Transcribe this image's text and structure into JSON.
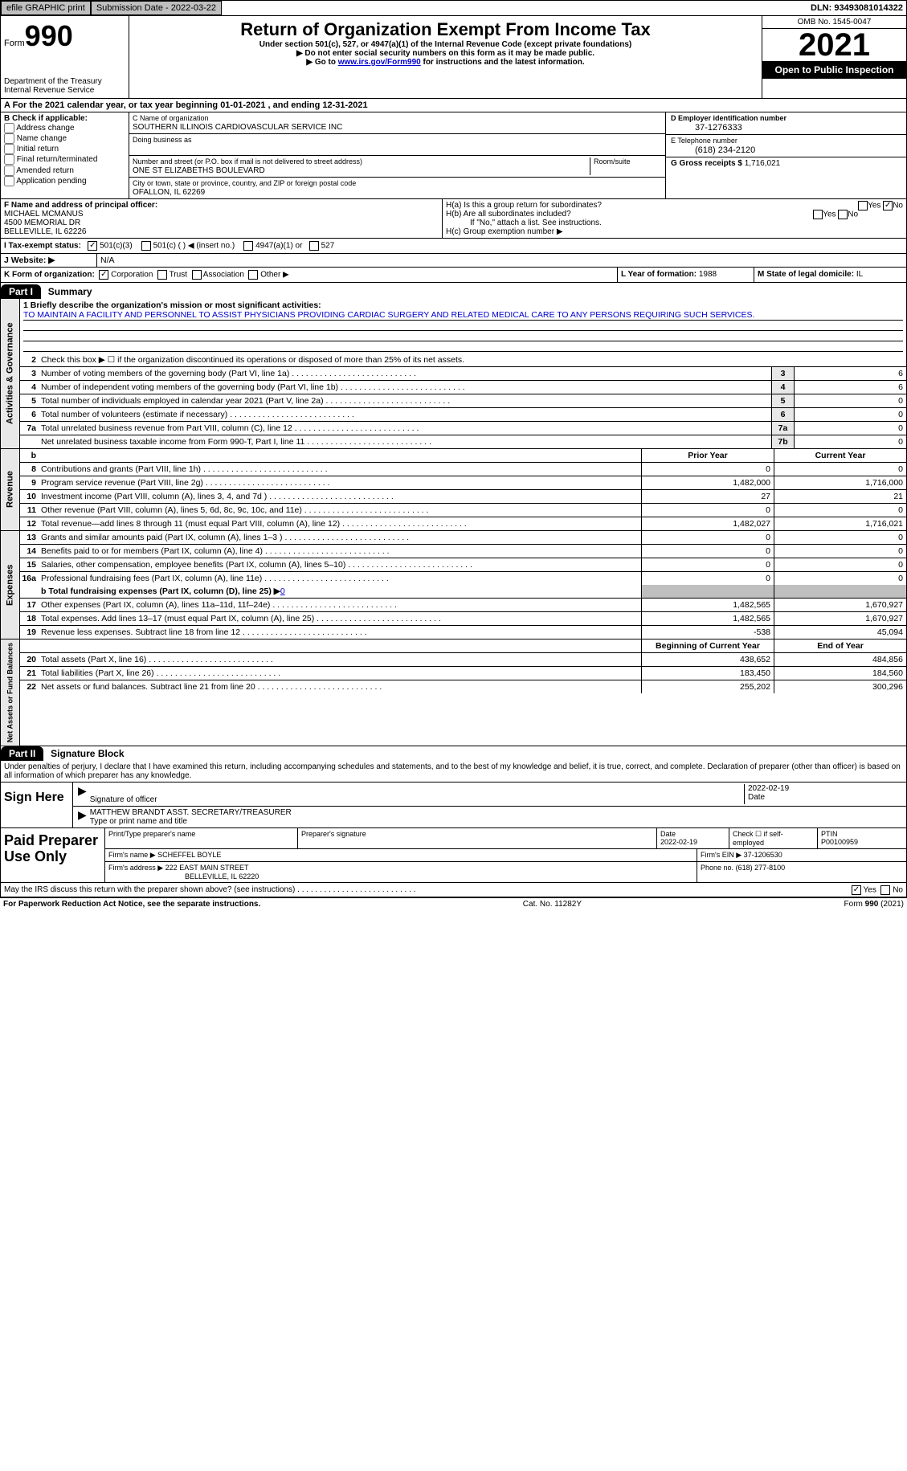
{
  "topbar": {
    "efile": "efile GRAPHIC print",
    "submission_label": "Submission Date - 2022-03-22",
    "dln_label": "DLN: 93493081014322"
  },
  "header": {
    "form_label": "Form",
    "form_no": "990",
    "dept": "Department of the Treasury Internal Revenue Service",
    "title": "Return of Organization Exempt From Income Tax",
    "subtitle": "Under section 501(c), 527, or 4947(a)(1) of the Internal Revenue Code (except private foundations)",
    "note1": "▶ Do not enter social security numbers on this form as it may be made public.",
    "note2_pre": "▶ Go to ",
    "note2_link": "www.irs.gov/Form990",
    "note2_post": " for instructions and the latest information.",
    "omb": "OMB No. 1545-0047",
    "year": "2021",
    "inspect": "Open to Public Inspection"
  },
  "line_a": "A For the 2021 calendar year, or tax year beginning 01-01-2021   , and ending 12-31-2021",
  "section_b": {
    "title": "B Check if applicable:",
    "items": [
      "Address change",
      "Name change",
      "Initial return",
      "Final return/terminated",
      "Amended return",
      "Application pending"
    ]
  },
  "section_c": {
    "name_label": "C Name of organization",
    "name": "SOUTHERN ILLINOIS CARDIOVASCULAR SERVICE INC",
    "dba_label": "Doing business as",
    "dba": "",
    "addr_label": "Number and street (or P.O. box if mail is not delivered to street address)",
    "room_label": "Room/suite",
    "addr": "ONE ST ELIZABETHS BOULEVARD",
    "city_label": "City or town, state or province, country, and ZIP or foreign postal code",
    "city": "OFALLON, IL  62269"
  },
  "section_d": {
    "label": "D Employer identification number",
    "ein": "37-1276333"
  },
  "section_e": {
    "label": "E Telephone number",
    "phone": "(618) 234-2120"
  },
  "section_g": {
    "label": "G Gross receipts $",
    "val": "1,716,021"
  },
  "section_f": {
    "label": "F Name and address of principal officer:",
    "name": "MICHAEL MCMANUS",
    "addr1": "4500 MEMORIAL DR",
    "addr2": "BELLEVILLE, IL 62226"
  },
  "section_h": {
    "ha": "H(a)  Is this a group return for subordinates?",
    "hb": "H(b)  Are all subordinates included?",
    "hb_note": "If \"No,\" attach a list. See instructions.",
    "hc": "H(c)  Group exemption number ▶",
    "yes": "Yes",
    "no": "No"
  },
  "tax_status": {
    "label": "I  Tax-exempt status:",
    "c3": "501(c)(3)",
    "c": "501(c) (  ) ◀ (insert no.)",
    "a1": "4947(a)(1) or",
    "527": "527"
  },
  "website": {
    "label": "J  Website: ▶",
    "val": "N/A"
  },
  "k": {
    "label": "K Form of organization:",
    "corp": "Corporation",
    "trust": "Trust",
    "assoc": "Association",
    "other": "Other ▶"
  },
  "l": {
    "label": "L Year of formation:",
    "val": "1988"
  },
  "m": {
    "label": "M State of legal domicile:",
    "val": "IL"
  },
  "part1": {
    "header": "Part I",
    "title": "Summary",
    "vert1": "Activities & Governance",
    "vert2": "Revenue",
    "vert3": "Expenses",
    "vert4": "Net Assets or Fund Balances",
    "mission_label": "1   Briefly describe the organization's mission or most significant activities:",
    "mission": "TO MAINTAIN A FACILITY AND PERSONNEL TO ASSIST PHYSICIANS PROVIDING CARDIAC SURGERY AND RELATED MEDICAL CARE TO ANY PERSONS REQUIRING SUCH SERVICES.",
    "l2": "Check this box ▶ ☐ if the organization discontinued its operations or disposed of more than 25% of its net assets.",
    "prior_h": "Prior Year",
    "curr_h": "Current Year",
    "beg_h": "Beginning of Current Year",
    "end_h": "End of Year",
    "lines_gov": [
      {
        "n": "3",
        "t": "Number of voting members of the governing body (Part VI, line 1a)",
        "box": "3",
        "v": "6"
      },
      {
        "n": "4",
        "t": "Number of independent voting members of the governing body (Part VI, line 1b)",
        "box": "4",
        "v": "6"
      },
      {
        "n": "5",
        "t": "Total number of individuals employed in calendar year 2021 (Part V, line 2a)",
        "box": "5",
        "v": "0"
      },
      {
        "n": "6",
        "t": "Total number of volunteers (estimate if necessary)",
        "box": "6",
        "v": "0"
      },
      {
        "n": "7a",
        "t": "Total unrelated business revenue from Part VIII, column (C), line 12",
        "box": "7a",
        "v": "0"
      },
      {
        "n": "",
        "t": "Net unrelated business taxable income from Form 990-T, Part I, line 11",
        "box": "7b",
        "v": "0"
      }
    ],
    "lines_rev": [
      {
        "n": "8",
        "t": "Contributions and grants (Part VIII, line 1h)",
        "p": "0",
        "c": "0"
      },
      {
        "n": "9",
        "t": "Program service revenue (Part VIII, line 2g)",
        "p": "1,482,000",
        "c": "1,716,000"
      },
      {
        "n": "10",
        "t": "Investment income (Part VIII, column (A), lines 3, 4, and 7d )",
        "p": "27",
        "c": "21"
      },
      {
        "n": "11",
        "t": "Other revenue (Part VIII, column (A), lines 5, 6d, 8c, 9c, 10c, and 11e)",
        "p": "0",
        "c": "0"
      },
      {
        "n": "12",
        "t": "Total revenue—add lines 8 through 11 (must equal Part VIII, column (A), line 12)",
        "p": "1,482,027",
        "c": "1,716,021"
      }
    ],
    "lines_exp": [
      {
        "n": "13",
        "t": "Grants and similar amounts paid (Part IX, column (A), lines 1–3 )",
        "p": "0",
        "c": "0"
      },
      {
        "n": "14",
        "t": "Benefits paid to or for members (Part IX, column (A), line 4)",
        "p": "0",
        "c": "0"
      },
      {
        "n": "15",
        "t": "Salaries, other compensation, employee benefits (Part IX, column (A), lines 5–10)",
        "p": "0",
        "c": "0"
      },
      {
        "n": "16a",
        "t": "Professional fundraising fees (Part IX, column (A), line 11e)",
        "p": "0",
        "c": "0"
      }
    ],
    "l16b_label": "b  Total fundraising expenses (Part IX, column (D), line 25) ▶",
    "l16b_val": "0",
    "lines_exp2": [
      {
        "n": "17",
        "t": "Other expenses (Part IX, column (A), lines 11a–11d, 11f–24e)",
        "p": "1,482,565",
        "c": "1,670,927"
      },
      {
        "n": "18",
        "t": "Total expenses. Add lines 13–17 (must equal Part IX, column (A), line 25)",
        "p": "1,482,565",
        "c": "1,670,927"
      },
      {
        "n": "19",
        "t": "Revenue less expenses. Subtract line 18 from line 12",
        "p": "-538",
        "c": "45,094"
      }
    ],
    "lines_net": [
      {
        "n": "20",
        "t": "Total assets (Part X, line 16)",
        "p": "438,652",
        "c": "484,856"
      },
      {
        "n": "21",
        "t": "Total liabilities (Part X, line 26)",
        "p": "183,450",
        "c": "184,560"
      },
      {
        "n": "22",
        "t": "Net assets or fund balances. Subtract line 21 from line 20",
        "p": "255,202",
        "c": "300,296"
      }
    ]
  },
  "part2": {
    "header": "Part II",
    "title": "Signature Block",
    "decl": "Under penalties of perjury, I declare that I have examined this return, including accompanying schedules and statements, and to the best of my knowledge and belief, it is true, correct, and complete. Declaration of preparer (other than officer) is based on all information of which preparer has any knowledge.",
    "sign_here": "Sign Here",
    "sig_officer": "Signature of officer",
    "sig_date": "2022-02-19",
    "date_label": "Date",
    "signer_name": "MATTHEW BRANDT  ASST. SECRETARY/TREASURER",
    "signer_title_label": "Type or print name and title",
    "paid": "Paid Preparer Use Only",
    "prep_name_label": "Print/Type preparer's name",
    "prep_sig_label": "Preparer's signature",
    "prep_date_label": "Date",
    "prep_date": "2022-02-19",
    "self_emp": "Check ☐ if self-employed",
    "ptin_label": "PTIN",
    "ptin": "P00100959",
    "firm_name_label": "Firm's name    ▶",
    "firm_name": "SCHEFFEL BOYLE",
    "firm_ein_label": "Firm's EIN ▶",
    "firm_ein": "37-1206530",
    "firm_addr_label": "Firm's address ▶",
    "firm_addr1": "222 EAST MAIN STREET",
    "firm_addr2": "BELLEVILLE, IL  62220",
    "firm_phone_label": "Phone no.",
    "firm_phone": "(618) 277-8100",
    "discuss": "May the IRS discuss this return with the preparer shown above? (see instructions)"
  },
  "footer": {
    "left": "For Paperwork Reduction Act Notice, see the separate instructions.",
    "mid": "Cat. No. 11282Y",
    "right": "Form 990 (2021)"
  }
}
